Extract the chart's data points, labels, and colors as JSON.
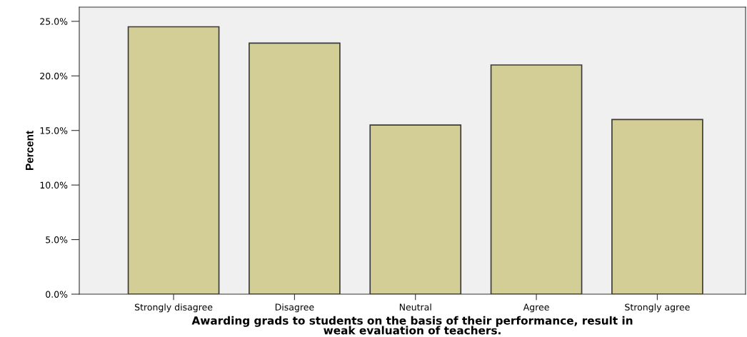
{
  "chart_data": {
    "type": "bar",
    "xlabel": "Awarding grads to students on the basis of their performance, result in\nweak evaluation of teachers.",
    "ylabel": "Percent",
    "categories": [
      "Strongly disagree",
      "Disagree",
      "Neutral",
      "Agree",
      "Strongly agree"
    ],
    "values": [
      24.5,
      23.0,
      15.5,
      21.0,
      16.0
    ],
    "color": "#d3cd96",
    "ylim": [
      0,
      26.3
    ],
    "yticks": [
      {
        "value": 0,
        "label": "0.0%"
      },
      {
        "value": 5,
        "label": "5.0%"
      },
      {
        "value": 10,
        "label": "10.0%"
      },
      {
        "value": 15,
        "label": "15.0%"
      },
      {
        "value": 20,
        "label": "20.0%"
      },
      {
        "value": 25,
        "label": "25.0%"
      }
    ],
    "grid": false
  }
}
